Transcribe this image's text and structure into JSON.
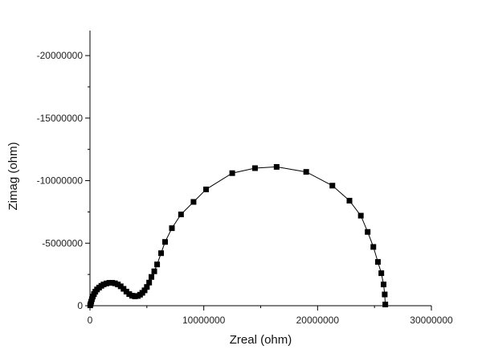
{
  "chart_data": {
    "type": "scatter",
    "title": "",
    "xlabel": "Zreal (ohm)",
    "ylabel": "Zimag (ohm)",
    "xlim": [
      0,
      30000000
    ],
    "ylim": [
      0,
      -22000000
    ],
    "x_ticks": [
      0,
      10000000,
      20000000,
      30000000
    ],
    "x_tick_labels": [
      "0",
      "10000000",
      "20000000",
      "30000000"
    ],
    "y_ticks": [
      0,
      -5000000,
      -10000000,
      -15000000,
      -20000000
    ],
    "y_tick_labels": [
      "0",
      "-5000000",
      "-10000000",
      "-15000000",
      "-20000000"
    ],
    "grid": false,
    "legend": "none",
    "marker": "square",
    "series": [
      {
        "color": "#000000",
        "line": true,
        "x": [
          20000,
          60000,
          110000,
          170000,
          250000,
          350000,
          470000,
          620000,
          800000,
          1000000,
          1200000,
          1450000,
          1700000,
          1950000,
          2200000,
          2450000,
          2700000,
          2950000,
          3200000,
          3450000,
          3700000,
          3950000,
          4200000,
          4400000,
          4600000,
          4800000,
          5000000,
          5200000,
          5400000,
          5650000,
          5900000,
          6250000,
          6600000,
          7200000,
          8000000,
          9100000,
          10200000,
          12500000,
          14500000,
          16400000,
          19000000,
          21300000,
          22800000,
          23800000,
          24400000,
          24900000,
          25300000,
          25600000,
          25800000,
          25900000,
          25950000
        ],
        "y": [
          -30000,
          -150000,
          -320000,
          -520000,
          -730000,
          -930000,
          -1120000,
          -1300000,
          -1450000,
          -1590000,
          -1700000,
          -1780000,
          -1830000,
          -1830000,
          -1790000,
          -1700000,
          -1550000,
          -1350000,
          -1130000,
          -930000,
          -800000,
          -750000,
          -780000,
          -880000,
          -1030000,
          -1230000,
          -1500000,
          -1850000,
          -2300000,
          -2750000,
          -3300000,
          -4200000,
          -5100000,
          -6200000,
          -7300000,
          -8300000,
          -9300000,
          -10600000,
          -11000000,
          -11100000,
          -10700000,
          -9600000,
          -8400000,
          -7200000,
          -5900000,
          -4700000,
          -3500000,
          -2600000,
          -1700000,
          -900000,
          -100000
        ]
      }
    ]
  }
}
